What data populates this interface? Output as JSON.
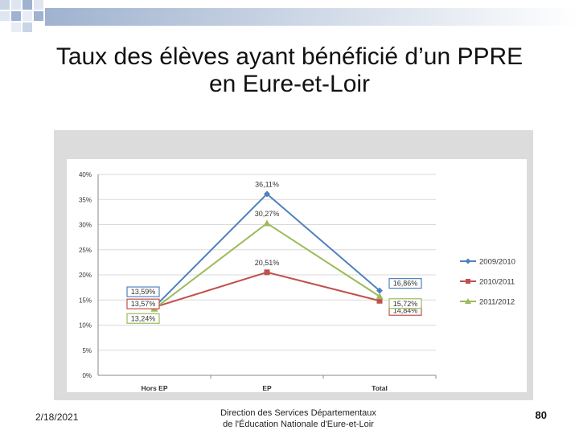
{
  "slide": {
    "title_line1": "Taux des élèves ayant bénéficié d’un PPRE",
    "title_line2": "en Eure-et-Loir"
  },
  "footer": {
    "date": "2/18/2021",
    "center_line1": "Direction des Services Départementaux",
    "center_line2": "de l'Éducation Nationale d'Eure-et-Loir",
    "page_number": "80"
  },
  "colors": {
    "series_2009": "#4f81bd",
    "series_2010": "#c0504d",
    "series_2011": "#9bbb59",
    "chart_bg": "#dcdcdc",
    "plot_bg": "#ffffff",
    "deco": "#9fb2cf"
  },
  "chart_data": {
    "type": "line",
    "title": "",
    "xlabel": "",
    "ylabel": "",
    "categories": [
      "Hors EP",
      "EP",
      "Total"
    ],
    "ylim": [
      0,
      40
    ],
    "y_ticks": [
      0,
      5,
      10,
      15,
      20,
      25,
      30,
      35,
      40
    ],
    "y_tick_labels": [
      "0%",
      "5%",
      "10%",
      "15%",
      "20%",
      "25%",
      "30%",
      "35%",
      "40%"
    ],
    "grid": true,
    "legend_position": "right",
    "series": [
      {
        "name": "2009/2010",
        "color": "#4f81bd",
        "marker": "diamond",
        "values": [
          13.59,
          36.11,
          16.86
        ],
        "labels": [
          "13,59%",
          "36,11%",
          "16,86%"
        ]
      },
      {
        "name": "2010/2011",
        "color": "#c0504d",
        "marker": "square",
        "values": [
          13.57,
          20.51,
          14.84
        ],
        "labels": [
          "13,57%",
          "20,51%",
          "14,84%"
        ]
      },
      {
        "name": "2011/2012",
        "color": "#9bbb59",
        "marker": "triangle",
        "values": [
          13.24,
          30.27,
          15.72
        ],
        "labels": [
          "13,24%",
          "30,27%",
          "15,72%"
        ]
      }
    ]
  }
}
